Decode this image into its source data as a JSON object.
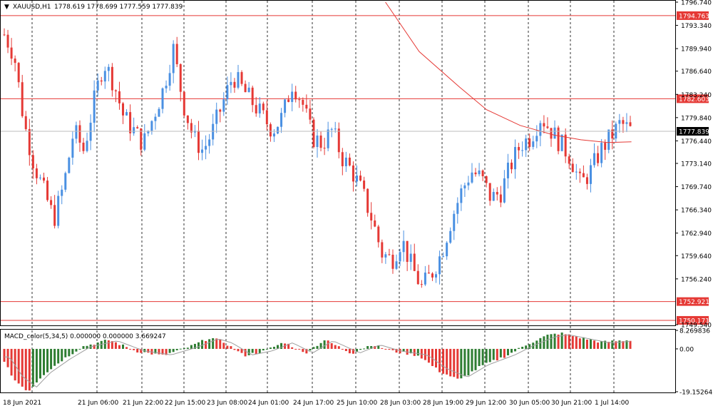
{
  "window": {
    "symbol_title": "XAUUSD,H1",
    "ohlc_text": "1778.619 1778.699 1777.559 1777.839"
  },
  "macd": {
    "title": "MACD_color(5,34,5) 0.000000 0.000000 3.669247",
    "ticks": [
      "8.269836",
      "0.00",
      "-19.152642"
    ]
  },
  "colors": {
    "bull": "#4a90e2",
    "bear": "#e53935",
    "level_line": "#e53935",
    "ma_line": "#e53935",
    "grid": "#000000",
    "macd_up": "#2e7d32",
    "macd_down": "#e53935",
    "signal": "#9e9e9e"
  },
  "chart_data": [
    {
      "type": "candlestick",
      "symbol": "XAUUSD",
      "timeframe": "H1",
      "ylim": [
        1749.54,
        1796.74
      ],
      "y_ticks": [
        "1796.740",
        "1793.340",
        "1789.940",
        "1786.640",
        "1783.240",
        "1779.840",
        "1776.440",
        "1773.140",
        "1769.740",
        "1766.340",
        "1762.940",
        "1759.640",
        "1756.240",
        "1749.540"
      ],
      "x_labels": [
        "18 Jun 2021",
        "21 Jun 06:00",
        "21 Jun 22:00",
        "22 Jun 15:00",
        "23 Jun 08:00",
        "24 Jun 01:00",
        "24 Jun 17:00",
        "25 Jun 10:00",
        "28 Jun 03:00",
        "28 Jun 19:00",
        "29 Jun 12:00",
        "30 Jun 05:00",
        "30 Jun 21:00",
        "1 Jul 14:00"
      ],
      "levels": [
        {
          "label": "1794.763",
          "value": 1794.763
        },
        {
          "label": "1782.603",
          "value": 1782.603
        },
        {
          "label": "1752.921",
          "value": 1752.921
        },
        {
          "label": "1750.171",
          "value": 1750.171
        }
      ],
      "current_price": {
        "label": "1777.839",
        "value": 1777.839
      },
      "anchors": [
        1792,
        1789,
        1779,
        1773,
        1769,
        1765,
        1770,
        1778,
        1775,
        1782,
        1788,
        1785,
        1780,
        1778,
        1776,
        1780,
        1784,
        1790,
        1782,
        1777,
        1775,
        1778,
        1782,
        1786,
        1784,
        1782,
        1780,
        1778,
        1780,
        1785,
        1782,
        1777,
        1776,
        1778,
        1774,
        1772,
        1769,
        1765,
        1760,
        1759,
        1762,
        1758,
        1755,
        1757,
        1760,
        1765,
        1769,
        1772,
        1771,
        1768,
        1769,
        1773,
        1776,
        1777,
        1780,
        1778,
        1776,
        1774,
        1770,
        1772,
        1775,
        1777,
        1779,
        1778
      ],
      "ma": [
        {
          "t": 0.57,
          "v": 1796.74
        },
        {
          "t": 0.62,
          "v": 1789.5
        },
        {
          "t": 0.68,
          "v": 1784.3
        },
        {
          "t": 0.72,
          "v": 1781.0
        },
        {
          "t": 0.77,
          "v": 1778.7
        },
        {
          "t": 0.82,
          "v": 1777.3
        },
        {
          "t": 0.86,
          "v": 1776.6
        },
        {
          "t": 0.9,
          "v": 1776.2
        },
        {
          "t": 0.935,
          "v": 1776.3
        }
      ]
    },
    {
      "type": "histogram",
      "name": "MACD_color(5,34,5)",
      "ylim": [
        -19.152642,
        8.269836
      ],
      "envelope": [
        {
          "t": 0.0,
          "v": -4
        },
        {
          "t": 0.02,
          "v": -14
        },
        {
          "t": 0.04,
          "v": -19
        },
        {
          "t": 0.06,
          "v": -12
        },
        {
          "t": 0.09,
          "v": -5
        },
        {
          "t": 0.12,
          "v": 1
        },
        {
          "t": 0.16,
          "v": 4
        },
        {
          "t": 0.2,
          "v": -1
        },
        {
          "t": 0.24,
          "v": -3
        },
        {
          "t": 0.28,
          "v": 1
        },
        {
          "t": 0.31,
          "v": 5
        },
        {
          "t": 0.33,
          "v": 3
        },
        {
          "t": 0.36,
          "v": -3
        },
        {
          "t": 0.39,
          "v": -1
        },
        {
          "t": 0.42,
          "v": 3
        },
        {
          "t": 0.45,
          "v": -2
        },
        {
          "t": 0.48,
          "v": 4
        },
        {
          "t": 0.52,
          "v": -2
        },
        {
          "t": 0.55,
          "v": 2
        },
        {
          "t": 0.58,
          "v": -1
        },
        {
          "t": 0.62,
          "v": -3
        },
        {
          "t": 0.65,
          "v": -10
        },
        {
          "t": 0.68,
          "v": -14
        },
        {
          "t": 0.71,
          "v": -8
        },
        {
          "t": 0.75,
          "v": -3
        },
        {
          "t": 0.78,
          "v": 2
        },
        {
          "t": 0.81,
          "v": 6
        },
        {
          "t": 0.83,
          "v": 7
        },
        {
          "t": 0.86,
          "v": 5
        },
        {
          "t": 0.89,
          "v": 3
        },
        {
          "t": 0.935,
          "v": 4
        }
      ]
    }
  ]
}
